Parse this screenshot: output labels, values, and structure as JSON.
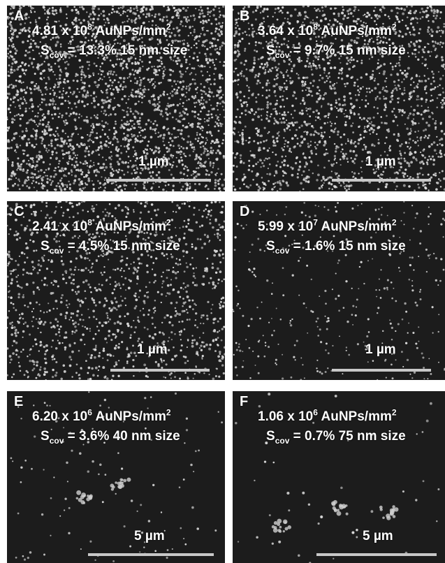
{
  "panels": [
    {
      "label": "A",
      "density_base": "4.81 x 10",
      "density_exp": "8",
      "density_unit": " AuNPs/mm",
      "unit_exp": "2",
      "scov_prefix": "S",
      "scov_sub": "cov",
      "scov_rest": " = 13.3%  15 nm size",
      "scale": "1 µm"
    },
    {
      "label": "B",
      "density_base": "3.64 x 10",
      "density_exp": "8",
      "density_unit": " AuNPs/mm",
      "unit_exp": "2",
      "scov_prefix": "S",
      "scov_sub": "cov",
      "scov_rest": " = 9.7%  15 nm size",
      "scale": "1 µm"
    },
    {
      "label": "C",
      "density_base": "2.41 x 10",
      "density_exp": "8",
      "density_unit": " AuNPs/mm",
      "unit_exp": "2",
      "scov_prefix": "S",
      "scov_sub": "cov",
      "scov_rest": " = 4.5%  15 nm size",
      "scale": "1 µm"
    },
    {
      "label": "D",
      "density_base": "5.99 x 10",
      "density_exp": "7",
      "density_unit": " AuNPs/mm",
      "unit_exp": "2",
      "scov_prefix": "S",
      "scov_sub": "cov",
      "scov_rest": " = 1.6%  15 nm size",
      "scale": "1 µm"
    },
    {
      "label": "E",
      "density_base": "6.20 x 10",
      "density_exp": "6",
      "density_unit": " AuNPs/mm",
      "unit_exp": "2",
      "scov_prefix": "S",
      "scov_sub": "cov",
      "scov_rest": " = 3.6%  40 nm size",
      "scale": "5 µm"
    },
    {
      "label": "F",
      "density_base": "1.06 x 10",
      "density_exp": "6",
      "density_unit": " AuNPs/mm",
      "unit_exp": "2",
      "scov_prefix": "S",
      "scov_sub": "cov",
      "scov_rest": " = 0.7%  75 nm size",
      "scale": "5 µm"
    }
  ],
  "colors": {
    "background": "#1c1c1c",
    "particle": "#d8d8d8",
    "scale_bar": "#c8c8c8",
    "text": "#ffffff"
  }
}
